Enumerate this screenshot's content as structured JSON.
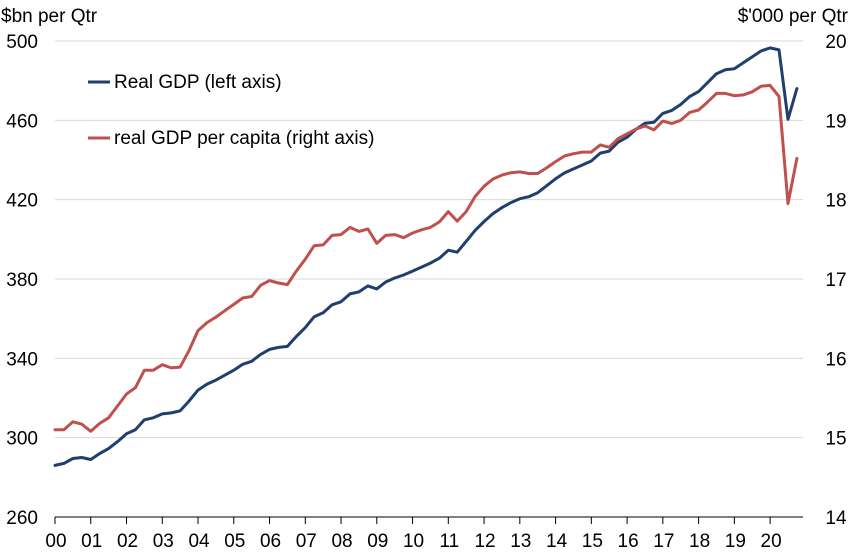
{
  "chart_data": {
    "type": "line",
    "title": "",
    "y_left_label": "$bn per Qtr",
    "y_right_label": "$'000 per Qtr",
    "y_left_lim": [
      260,
      500
    ],
    "y_right_lim": [
      14,
      20
    ],
    "y_left_ticks": [
      260,
      300,
      340,
      380,
      420,
      460,
      500
    ],
    "y_right_ticks": [
      14,
      15,
      16,
      17,
      18,
      19,
      20
    ],
    "x_lim": [
      2000,
      2020.92
    ],
    "x_ticks": [
      {
        "value": 2000,
        "label": "00"
      },
      {
        "value": 2001,
        "label": "01"
      },
      {
        "value": 2002,
        "label": "02"
      },
      {
        "value": 2003,
        "label": "03"
      },
      {
        "value": 2004,
        "label": "04"
      },
      {
        "value": 2005,
        "label": "05"
      },
      {
        "value": 2006,
        "label": "06"
      },
      {
        "value": 2007,
        "label": "07"
      },
      {
        "value": 2008,
        "label": "08"
      },
      {
        "value": 2009,
        "label": "09"
      },
      {
        "value": 2010,
        "label": "10"
      },
      {
        "value": 2011,
        "label": "11"
      },
      {
        "value": 2012,
        "label": "12"
      },
      {
        "value": 2013,
        "label": "13"
      },
      {
        "value": 2014,
        "label": "14"
      },
      {
        "value": 2015,
        "label": "15"
      },
      {
        "value": 2016,
        "label": "16"
      },
      {
        "value": 2017,
        "label": "17"
      },
      {
        "value": 2018,
        "label": "18"
      },
      {
        "value": 2019,
        "label": "19"
      },
      {
        "value": 2020,
        "label": "20"
      }
    ],
    "grid": "horizontal",
    "legend_position": "top-left",
    "series": [
      {
        "name": "Real GDP (left axis)",
        "axis": "left",
        "color": "#1f3f6e",
        "points": [
          [
            2000.0,
            286
          ],
          [
            2000.25,
            287
          ],
          [
            2000.5,
            289.5
          ],
          [
            2000.75,
            290
          ],
          [
            2001.0,
            289
          ],
          [
            2001.25,
            292
          ],
          [
            2001.5,
            294.5
          ],
          [
            2001.75,
            298
          ],
          [
            2002.0,
            302
          ],
          [
            2002.25,
            304
          ],
          [
            2002.5,
            309
          ],
          [
            2002.75,
            310
          ],
          [
            2003.0,
            312
          ],
          [
            2003.25,
            312.5
          ],
          [
            2003.5,
            313.5
          ],
          [
            2003.75,
            318.5
          ],
          [
            2004.0,
            324
          ],
          [
            2004.25,
            327
          ],
          [
            2004.5,
            329
          ],
          [
            2004.75,
            331.5
          ],
          [
            2005.0,
            334
          ],
          [
            2005.25,
            337
          ],
          [
            2005.5,
            338.5
          ],
          [
            2005.75,
            342
          ],
          [
            2006.0,
            344.5
          ],
          [
            2006.25,
            345.5
          ],
          [
            2006.5,
            346
          ],
          [
            2006.75,
            351
          ],
          [
            2007.0,
            355.5
          ],
          [
            2007.25,
            361
          ],
          [
            2007.5,
            363
          ],
          [
            2007.75,
            367
          ],
          [
            2008.0,
            368.5
          ],
          [
            2008.25,
            372.5
          ],
          [
            2008.5,
            373.5
          ],
          [
            2008.75,
            376.5
          ],
          [
            2009.0,
            375
          ],
          [
            2009.25,
            378.5
          ],
          [
            2009.5,
            380.5
          ],
          [
            2009.75,
            382
          ],
          [
            2010.0,
            384
          ],
          [
            2010.25,
            386
          ],
          [
            2010.5,
            388
          ],
          [
            2010.75,
            390.5
          ],
          [
            2011.0,
            394.5
          ],
          [
            2011.25,
            393.5
          ],
          [
            2011.5,
            399
          ],
          [
            2011.75,
            404.5
          ],
          [
            2012.0,
            409
          ],
          [
            2012.25,
            413
          ],
          [
            2012.5,
            416
          ],
          [
            2012.75,
            418.5
          ],
          [
            2013.0,
            420.5
          ],
          [
            2013.25,
            421.5
          ],
          [
            2013.5,
            423.5
          ],
          [
            2013.75,
            427
          ],
          [
            2014.0,
            430.5
          ],
          [
            2014.25,
            433.5
          ],
          [
            2014.5,
            435.5
          ],
          [
            2014.75,
            437.5
          ],
          [
            2015.0,
            439.5
          ],
          [
            2015.25,
            443.5
          ],
          [
            2015.5,
            444.5
          ],
          [
            2015.75,
            449
          ],
          [
            2016.0,
            451.5
          ],
          [
            2016.25,
            455.5
          ],
          [
            2016.5,
            458.5
          ],
          [
            2016.75,
            459
          ],
          [
            2017.0,
            463.5
          ],
          [
            2017.25,
            465
          ],
          [
            2017.5,
            468
          ],
          [
            2017.75,
            472
          ],
          [
            2018.0,
            474.5
          ],
          [
            2018.25,
            479
          ],
          [
            2018.5,
            483.5
          ],
          [
            2018.75,
            485.5
          ],
          [
            2019.0,
            486
          ],
          [
            2019.25,
            489
          ],
          [
            2019.5,
            492
          ],
          [
            2019.75,
            495
          ],
          [
            2020.0,
            496.5
          ],
          [
            2020.25,
            495.5
          ],
          [
            2020.5,
            460.5
          ],
          [
            2020.75,
            476
          ]
        ]
      },
      {
        "name": "real GDP per capita (right axis)",
        "axis": "right",
        "color": "#c0504d",
        "points": [
          [
            2000.0,
            15.1
          ],
          [
            2000.25,
            15.1
          ],
          [
            2000.5,
            15.2
          ],
          [
            2000.75,
            15.17
          ],
          [
            2001.0,
            15.08
          ],
          [
            2001.25,
            15.18
          ],
          [
            2001.5,
            15.25
          ],
          [
            2001.75,
            15.4
          ],
          [
            2002.0,
            15.55
          ],
          [
            2002.25,
            15.63
          ],
          [
            2002.5,
            15.85
          ],
          [
            2002.75,
            15.85
          ],
          [
            2003.0,
            15.92
          ],
          [
            2003.25,
            15.88
          ],
          [
            2003.5,
            15.89
          ],
          [
            2003.75,
            16.1
          ],
          [
            2004.0,
            16.35
          ],
          [
            2004.25,
            16.45
          ],
          [
            2004.5,
            16.52
          ],
          [
            2004.75,
            16.6
          ],
          [
            2005.0,
            16.68
          ],
          [
            2005.25,
            16.76
          ],
          [
            2005.5,
            16.78
          ],
          [
            2005.75,
            16.92
          ],
          [
            2006.0,
            16.98
          ],
          [
            2006.25,
            16.95
          ],
          [
            2006.5,
            16.93
          ],
          [
            2006.75,
            17.1
          ],
          [
            2007.0,
            17.25
          ],
          [
            2007.25,
            17.42
          ],
          [
            2007.5,
            17.43
          ],
          [
            2007.75,
            17.55
          ],
          [
            2008.0,
            17.56
          ],
          [
            2008.25,
            17.65
          ],
          [
            2008.5,
            17.6
          ],
          [
            2008.75,
            17.63
          ],
          [
            2009.0,
            17.45
          ],
          [
            2009.25,
            17.55
          ],
          [
            2009.5,
            17.56
          ],
          [
            2009.75,
            17.52
          ],
          [
            2010.0,
            17.58
          ],
          [
            2010.25,
            17.62
          ],
          [
            2010.5,
            17.65
          ],
          [
            2010.75,
            17.72
          ],
          [
            2011.0,
            17.85
          ],
          [
            2011.25,
            17.73
          ],
          [
            2011.5,
            17.85
          ],
          [
            2011.75,
            18.04
          ],
          [
            2012.0,
            18.17
          ],
          [
            2012.25,
            18.26
          ],
          [
            2012.5,
            18.31
          ],
          [
            2012.75,
            18.34
          ],
          [
            2013.0,
            18.35
          ],
          [
            2013.25,
            18.33
          ],
          [
            2013.5,
            18.33
          ],
          [
            2013.75,
            18.4
          ],
          [
            2014.0,
            18.48
          ],
          [
            2014.25,
            18.55
          ],
          [
            2014.5,
            18.58
          ],
          [
            2014.75,
            18.6
          ],
          [
            2015.0,
            18.6
          ],
          [
            2015.25,
            18.69
          ],
          [
            2015.5,
            18.66
          ],
          [
            2015.75,
            18.77
          ],
          [
            2016.0,
            18.83
          ],
          [
            2016.25,
            18.89
          ],
          [
            2016.5,
            18.93
          ],
          [
            2016.75,
            18.88
          ],
          [
            2017.0,
            18.99
          ],
          [
            2017.25,
            18.96
          ],
          [
            2017.5,
            19.0
          ],
          [
            2017.75,
            19.1
          ],
          [
            2018.0,
            19.13
          ],
          [
            2018.25,
            19.23
          ],
          [
            2018.5,
            19.34
          ],
          [
            2018.75,
            19.34
          ],
          [
            2019.0,
            19.31
          ],
          [
            2019.25,
            19.32
          ],
          [
            2019.5,
            19.36
          ],
          [
            2019.75,
            19.43
          ],
          [
            2020.0,
            19.44
          ],
          [
            2020.25,
            19.3
          ],
          [
            2020.5,
            17.95
          ],
          [
            2020.75,
            18.52
          ]
        ]
      }
    ]
  }
}
